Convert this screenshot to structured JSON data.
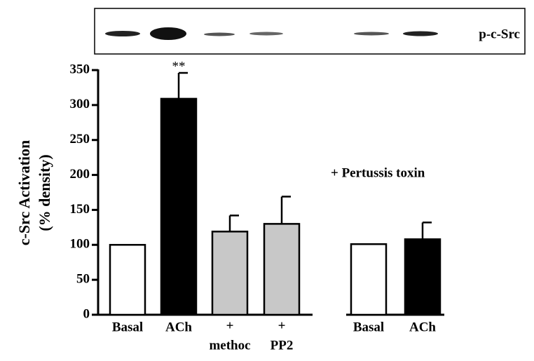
{
  "chart_data": {
    "type": "bar",
    "y_label": [
      "c-Src Activation",
      "(% density)"
    ],
    "categories": [
      [
        "Basal"
      ],
      [
        "ACh"
      ],
      [
        "+",
        "methoc"
      ],
      [
        "+",
        "PP2"
      ],
      [
        "Basal"
      ],
      [
        "ACh"
      ]
    ],
    "values": [
      100,
      309,
      119,
      130,
      101,
      108
    ],
    "errors": [
      null,
      37,
      23,
      39,
      null,
      24
    ],
    "colors": [
      "#ffffff",
      "#000000",
      "#c8c8c8",
      "#c8c8c8",
      "#ffffff",
      "#000000"
    ],
    "ylim": [
      0,
      350
    ],
    "yticks": [
      0,
      50,
      100,
      150,
      200,
      250,
      300,
      350
    ],
    "annotations": [
      "**",
      "+ Pertussis toxin"
    ],
    "blot_label": "p-c-Src"
  }
}
